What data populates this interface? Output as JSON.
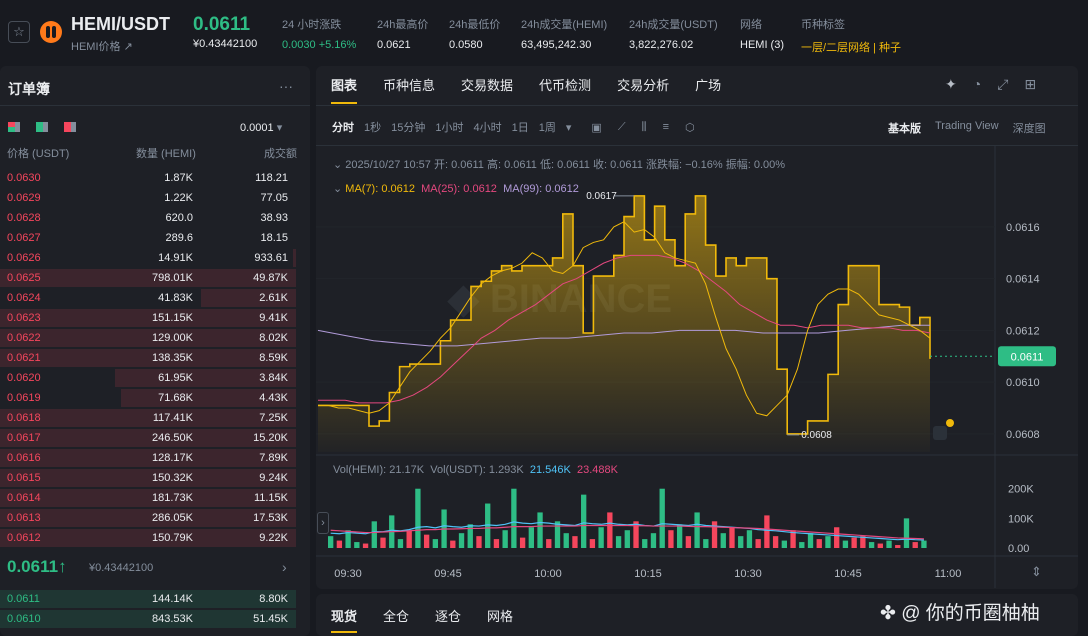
{
  "header": {
    "pair": "HEMI/USDT",
    "sub_label": "HEMI价格 ↗",
    "price": "0.0611",
    "price_cny": "¥0.43442100",
    "stats": [
      {
        "label": "24 小时涨跌",
        "value": "0.0030 +5.16%"
      },
      {
        "label": "24h最高价",
        "value": "0.0621"
      },
      {
        "label": "24h最低价",
        "value": "0.0580"
      },
      {
        "label": "24h成交量(HEMI)",
        "value": "63,495,242.30"
      },
      {
        "label": "24h成交量(USDT)",
        "value": "3,822,276.02"
      },
      {
        "label": "网络",
        "value": "HEMI (3)"
      },
      {
        "label": "币种标签",
        "value": "一层/二层网络 | 种子"
      }
    ]
  },
  "orderbook": {
    "title": "订单簿",
    "precision": "0.0001",
    "headers": [
      "价格 (USDT)",
      "数量 (HEMI)",
      "成交额"
    ],
    "asks": [
      {
        "p": "0.0630",
        "q": "1.87K",
        "t": "118.21",
        "d": 0.0
      },
      {
        "p": "0.0629",
        "q": "1.22K",
        "t": "77.05",
        "d": 0.0
      },
      {
        "p": "0.0628",
        "q": "620.0",
        "t": "38.93",
        "d": 0.0
      },
      {
        "p": "0.0627",
        "q": "289.6",
        "t": "18.15",
        "d": 0.0
      },
      {
        "p": "0.0626",
        "q": "14.91K",
        "t": "933.61",
        "d": 0.01
      },
      {
        "p": "0.0625",
        "q": "798.01K",
        "t": "49.87K",
        "d": 1.0
      },
      {
        "p": "0.0624",
        "q": "41.83K",
        "t": "2.61K",
        "d": 0.32
      },
      {
        "p": "0.0623",
        "q": "151.15K",
        "t": "9.41K",
        "d": 1.0
      },
      {
        "p": "0.0622",
        "q": "129.00K",
        "t": "8.02K",
        "d": 1.0
      },
      {
        "p": "0.0621",
        "q": "138.35K",
        "t": "8.59K",
        "d": 1.0
      },
      {
        "p": "0.0620",
        "q": "61.95K",
        "t": "3.84K",
        "d": 0.61
      },
      {
        "p": "0.0619",
        "q": "71.68K",
        "t": "4.43K",
        "d": 0.59
      },
      {
        "p": "0.0618",
        "q": "117.41K",
        "t": "7.25K",
        "d": 1.0
      },
      {
        "p": "0.0617",
        "q": "246.50K",
        "t": "15.20K",
        "d": 1.0
      },
      {
        "p": "0.0616",
        "q": "128.17K",
        "t": "7.89K",
        "d": 1.0
      },
      {
        "p": "0.0615",
        "q": "150.32K",
        "t": "9.24K",
        "d": 1.0
      },
      {
        "p": "0.0614",
        "q": "181.73K",
        "t": "11.15K",
        "d": 1.0
      },
      {
        "p": "0.0613",
        "q": "286.05K",
        "t": "17.53K",
        "d": 1.0
      },
      {
        "p": "0.0612",
        "q": "150.79K",
        "t": "9.22K",
        "d": 1.0
      }
    ],
    "mid_price": "0.0611",
    "mid_arrow": "↑",
    "mid_cny": "¥0.43442100",
    "bids": [
      {
        "p": "0.0611",
        "q": "144.14K",
        "t": "8.80K",
        "d": 1.0
      },
      {
        "p": "0.0610",
        "q": "843.53K",
        "t": "51.45K",
        "d": 1.0
      }
    ]
  },
  "chart_tabs": [
    "图表",
    "币种信息",
    "交易数据",
    "代币检测",
    "交易分析",
    "广场"
  ],
  "intervals": [
    "分时",
    "1秒",
    "15分钟",
    "1小时",
    "4小时",
    "1日",
    "1周"
  ],
  "views": [
    "基本版",
    "Trading View",
    "深度图"
  ],
  "ohlc_line": "2025/10/27 10:57  开: 0.0611  高: 0.0611  低: 0.0611  收: 0.0611  涨跌幅: −0.16%  振幅: 0.00%",
  "ma_line": {
    "ma7": "MA(7): 0.0612",
    "ma25": "MA(25): 0.0612",
    "ma99": "MA(99): 0.0612"
  },
  "vol_line": {
    "a": "Vol(HEMI): 21.17K",
    "b": "Vol(USDT): 1.293K",
    "c": "21.546K",
    "d": "23.488K"
  },
  "colors": {
    "up": "#2ebd85",
    "down": "#f6465d",
    "accent": "#f0b90b",
    "ma7": "#f0b90b",
    "ma25": "#e4487f",
    "ma99": "#b19bd9"
  },
  "chart_data": {
    "type": "area",
    "x_ticks": [
      "09:30",
      "09:45",
      "10:00",
      "10:15",
      "10:30",
      "10:45",
      "11:00"
    ],
    "y_ticks": [
      "0.0616",
      "0.0614",
      "0.0612",
      "0.0610",
      "0.0608"
    ],
    "ylim": [
      0.06073,
      0.06182
    ],
    "current_price": "0.0611",
    "high_label": "0.0617",
    "low_label": "0.0608",
    "price": [
      0.06091,
      0.06091,
      0.06091,
      0.06091,
      0.06091,
      0.06083,
      0.06085,
      0.06096,
      0.06106,
      0.06107,
      0.06107,
      0.06107,
      0.06116,
      0.06124,
      0.06124,
      0.06137,
      0.06139,
      0.06143,
      0.06145,
      0.06143,
      0.06145,
      0.06145,
      0.06145,
      0.06148,
      0.06165,
      0.06145,
      0.06119,
      0.06141,
      0.06141,
      0.06149,
      0.06164,
      0.06172,
      0.06155,
      0.06168,
      0.06155,
      0.06145,
      0.06165,
      0.06172,
      0.06153,
      0.06141,
      0.06148,
      0.06145,
      0.06148,
      0.06148,
      0.0614,
      0.06105,
      0.0608,
      0.0608,
      0.06085,
      0.06085,
      0.06103,
      0.0613,
      0.06145,
      0.06145,
      0.06145,
      0.0613,
      0.0613,
      0.06129,
      0.06122,
      0.06125,
      0.06109
    ],
    "ma7": [
      0.06091,
      0.06091,
      0.0609,
      0.0609,
      0.06089,
      0.06088,
      0.06089,
      0.06092,
      0.06098,
      0.06104,
      0.06108,
      0.06112,
      0.06117,
      0.06121,
      0.06127,
      0.06133,
      0.06138,
      0.06141,
      0.06143,
      0.06144,
      0.06146,
      0.0615,
      0.06148,
      0.06143,
      0.06142,
      0.06145,
      0.06152,
      0.06154,
      0.06155,
      0.0616,
      0.06162,
      0.06158,
      0.06159,
      0.06156,
      0.0615,
      0.06148,
      0.06147,
      0.06146,
      0.06138,
      0.06125,
      0.06113,
      0.06105,
      0.06095,
      0.06088,
      0.06087,
      0.06091,
      0.06095,
      0.06105,
      0.0612,
      0.0613,
      0.06134,
      0.06136,
      0.06136,
      0.06134,
      0.0613,
      0.06126,
      0.06125,
      0.06124,
      0.06122,
      0.0612,
      0.06117
    ],
    "ma25": [
      0.06093,
      0.06093,
      0.06093,
      0.06092,
      0.06092,
      0.06092,
      0.06093,
      0.06095,
      0.06098,
      0.06102,
      0.06107,
      0.06112,
      0.06117,
      0.0612,
      0.06124,
      0.06127,
      0.0613,
      0.06134,
      0.06138,
      0.0614,
      0.06143,
      0.06146,
      0.06148,
      0.06149,
      0.06149,
      0.06149,
      0.06148,
      0.06146,
      0.06143,
      0.06139,
      0.06135,
      0.0613,
      0.06127,
      0.06124,
      0.06122,
      0.06122,
      0.06121,
      0.06122,
      0.06122,
      0.06122,
      0.06121,
      0.06121,
      0.06121,
      0.0612,
      0.0612,
      0.06119
    ],
    "ma99": [
      0.0612,
      0.06118,
      0.06116,
      0.06115,
      0.06114,
      0.06114,
      0.06115,
      0.06116,
      0.06117,
      0.06117,
      0.06118,
      0.06119,
      0.06119,
      0.0612,
      0.0612,
      0.0612,
      0.06119,
      0.06119,
      0.06119,
      0.0612,
      0.06121,
      0.06122,
      0.06122
    ],
    "volume": {
      "ylim": [
        0,
        280000
      ],
      "ticks": [
        "200K",
        "100K",
        "0.00"
      ],
      "values": [
        40000,
        25000,
        60000,
        20000,
        15000,
        90000,
        35000,
        110000,
        30000,
        60000,
        200000,
        45000,
        30000,
        130000,
        25000,
        50000,
        80000,
        40000,
        150000,
        30000,
        60000,
        200000,
        35000,
        70000,
        120000,
        30000,
        90000,
        50000,
        40000,
        180000,
        30000,
        70000,
        120000,
        40000,
        60000,
        90000,
        30000,
        50000,
        200000,
        60000,
        80000,
        40000,
        120000,
        30000,
        90000,
        50000,
        70000,
        40000,
        60000,
        30000,
        110000,
        40000,
        25000,
        60000,
        20000,
        50000,
        30000,
        40000,
        70000,
        25000,
        35000,
        40000,
        20000,
        15000,
        25000,
        10000,
        100000,
        20000,
        25000
      ],
      "up": [
        1,
        0,
        1,
        1,
        0,
        1,
        0,
        1,
        1,
        0,
        1,
        0,
        1,
        1,
        0,
        1,
        1,
        0,
        1,
        0,
        1,
        1,
        0,
        1,
        1,
        0,
        1,
        1,
        0,
        1,
        0,
        1,
        0,
        1,
        1,
        0,
        1,
        1,
        1,
        0,
        1,
        0,
        1,
        1,
        0,
        1,
        0,
        1,
        1,
        0,
        0,
        0,
        1,
        0,
        1,
        1,
        0,
        1,
        0,
        1,
        0,
        0,
        1,
        0,
        1,
        0,
        1,
        0,
        1
      ],
      "ma1": [
        50000,
        48000,
        52000,
        50000,
        48000,
        55000,
        55000,
        60000,
        58000,
        62000,
        70000,
        72000,
        68000,
        75000,
        72000,
        70000,
        75000,
        74000,
        78000,
        76000,
        80000,
        88000,
        84000,
        82000,
        86000,
        84000,
        80000,
        78000,
        76000,
        85000,
        82000,
        80000,
        84000,
        80000,
        78000,
        80000,
        76000,
        74000,
        82000,
        80000,
        78000,
        76000,
        80000,
        76000,
        74000,
        72000,
        70000,
        68000,
        66000,
        62000,
        60000,
        58000,
        55000,
        52000,
        50000,
        48000,
        46000,
        44000,
        42000,
        40000,
        38000,
        36000,
        34000,
        32000,
        30000,
        28000,
        30000,
        28000,
        27000
      ],
      "ma2": [
        60000,
        58000,
        56000,
        54000,
        52000,
        52000,
        54000,
        55000,
        56000,
        58000,
        60000,
        62000,
        62000,
        64000,
        64000,
        65000,
        66000,
        66000,
        68000,
        68000,
        70000,
        72000,
        72000,
        72000,
        74000,
        74000,
        74000,
        74000,
        74000,
        76000,
        76000,
        76000,
        76000,
        76000,
        76000,
        75000,
        75000,
        74000,
        74000,
        74000,
        74000,
        73000,
        72000,
        72000,
        71000,
        70000,
        69000,
        68000,
        67000,
        66000,
        64000,
        62000,
        60000,
        58000,
        56000,
        54000,
        52000,
        50000,
        48000,
        46000,
        44000,
        42000,
        40000,
        38000,
        36000,
        34000,
        33000,
        32000,
        31000
      ]
    }
  },
  "bottom_tabs": [
    "现货",
    "全仓",
    "逐仓",
    "网格"
  ],
  "watermark": "你的币圈柚柚"
}
